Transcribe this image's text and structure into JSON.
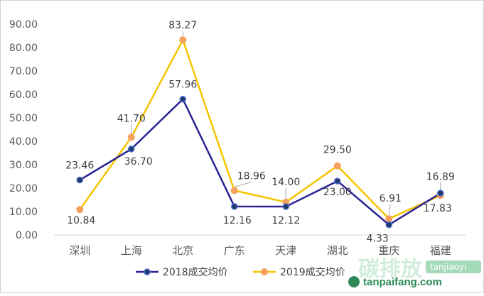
{
  "chart_data": {
    "type": "line",
    "categories": [
      "深圳",
      "上海",
      "北京",
      "广东",
      "天津",
      "湖北",
      "重庆",
      "福建"
    ],
    "series": [
      {
        "name": "2018成交均价",
        "values": [
          23.46,
          36.7,
          57.96,
          12.16,
          12.12,
          23.0,
          4.33,
          17.83
        ],
        "labels": [
          "23.46",
          "36.70",
          "57.96",
          "12.16",
          "12.12",
          "23.00",
          "4.33",
          "17.83"
        ],
        "color": "#2a2393",
        "marker_color": "#1f3864"
      },
      {
        "name": "2019成交均价",
        "values": [
          10.84,
          41.7,
          83.27,
          18.96,
          14.0,
          29.5,
          6.91,
          16.89
        ],
        "labels": [
          "10.84",
          "41.70",
          "83.27",
          "18.96",
          "14.00",
          "29.50",
          "6.91",
          "16.89"
        ],
        "color": "#f5c400",
        "marker_color": "#f4a15d"
      }
    ],
    "ylim": [
      0,
      90
    ],
    "yticks": [
      "0.00",
      "10.00",
      "20.00",
      "30.00",
      "40.00",
      "50.00",
      "60.00",
      "70.00",
      "80.00",
      "90.00"
    ],
    "grid": false,
    "legend_position": "bottom"
  },
  "watermark": {
    "cn": "碳排放",
    "en": "tanjiaoyi",
    "url": "tanpaifang.com"
  }
}
